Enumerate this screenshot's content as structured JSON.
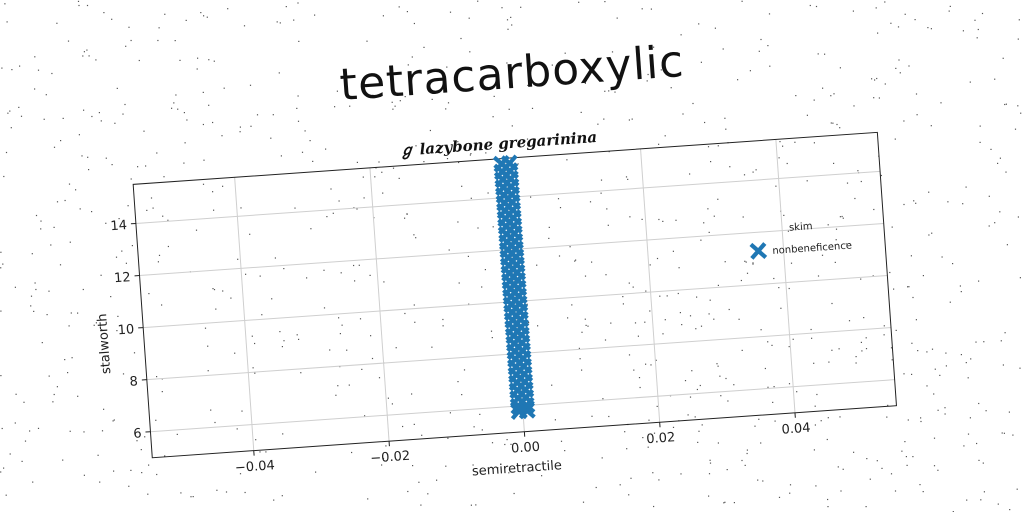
{
  "title": "tetracarboxylic",
  "chart_data": {
    "type": "scatter",
    "subtitle": "ℊ lazybone gregarinina",
    "xlabel": "semiretractile",
    "ylabel": "stalworth",
    "xlim": [
      -0.055,
      0.055
    ],
    "ylim": [
      5.0,
      15.5
    ],
    "xticks": [
      -0.04,
      -0.02,
      0.0,
      0.02,
      0.04
    ],
    "xtick_labels": [
      "−0.04",
      "−0.02",
      "0.00",
      "0.02",
      "0.04"
    ],
    "yticks": [
      6,
      8,
      10,
      12,
      14
    ],
    "ytick_labels": [
      "6",
      "8",
      "10",
      "12",
      "14"
    ],
    "grid": true,
    "legend": {
      "title": "skim",
      "placement": "right"
    },
    "series": [
      {
        "name": "nonbeneficence",
        "marker": "X",
        "color": "#1f77b4",
        "points": [
          {
            "x": 0.0,
            "y": 5.8
          },
          {
            "x": 0.0,
            "y": 6.0
          },
          {
            "x": 0.0,
            "y": 6.3
          },
          {
            "x": 0.0,
            "y": 6.6
          },
          {
            "x": 0.0,
            "y": 6.9
          },
          {
            "x": 0.0,
            "y": 7.2
          },
          {
            "x": 0.0,
            "y": 7.5
          },
          {
            "x": 0.0,
            "y": 7.8
          },
          {
            "x": 0.0,
            "y": 8.1
          },
          {
            "x": 0.0,
            "y": 8.4
          },
          {
            "x": 0.0,
            "y": 8.7
          },
          {
            "x": 0.0,
            "y": 9.0
          },
          {
            "x": 0.0,
            "y": 9.3
          },
          {
            "x": 0.0,
            "y": 9.6
          },
          {
            "x": 0.0,
            "y": 9.9
          },
          {
            "x": 0.0,
            "y": 10.2
          },
          {
            "x": 0.0,
            "y": 10.5
          },
          {
            "x": 0.0,
            "y": 10.8
          },
          {
            "x": 0.0,
            "y": 11.1
          },
          {
            "x": 0.0,
            "y": 11.4
          },
          {
            "x": 0.0,
            "y": 11.7
          },
          {
            "x": 0.0,
            "y": 12.0
          },
          {
            "x": 0.0,
            "y": 12.3
          },
          {
            "x": 0.0,
            "y": 12.6
          },
          {
            "x": 0.0,
            "y": 12.9
          },
          {
            "x": 0.0,
            "y": 13.2
          },
          {
            "x": 0.0,
            "y": 13.5
          },
          {
            "x": 0.0,
            "y": 13.8
          },
          {
            "x": 0.0,
            "y": 14.1
          },
          {
            "x": 0.0,
            "y": 14.4
          },
          {
            "x": 0.0,
            "y": 14.7
          },
          {
            "x": 0.0,
            "y": 15.0
          },
          {
            "x": 0.0,
            "y": 15.3
          }
        ]
      }
    ]
  }
}
